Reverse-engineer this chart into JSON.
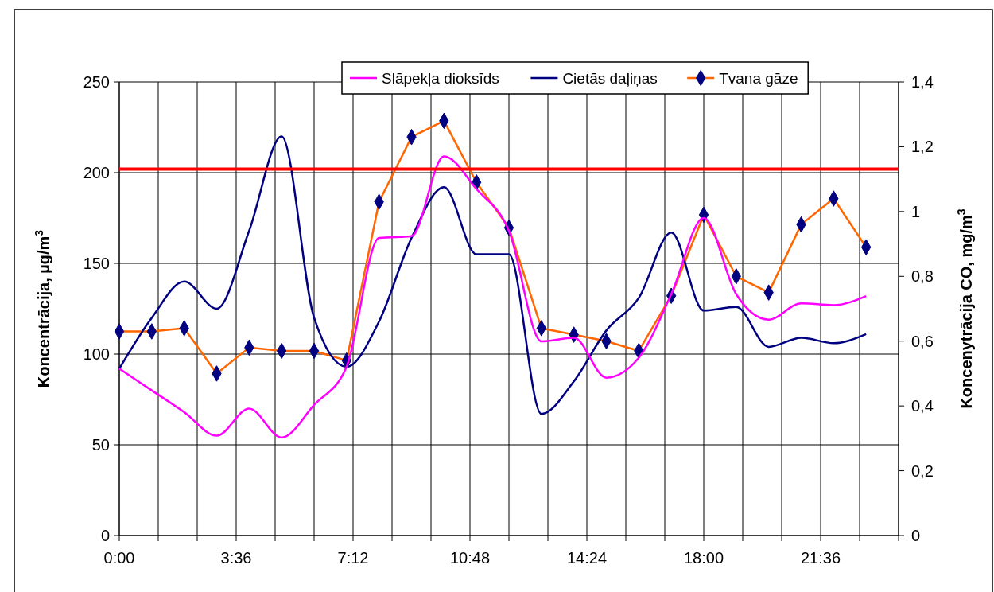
{
  "chart_data": {
    "type": "line",
    "xlabel": null,
    "ylabel": "Koncentrācija, µg/m$^{3}$",
    "y2label": "Koncenytrācija CO, mg/m$^{3}$",
    "x": [
      0,
      1,
      2,
      3,
      4,
      5,
      6,
      7,
      8,
      9,
      10,
      11,
      12,
      13,
      14,
      15,
      16,
      17,
      18,
      19,
      20,
      21,
      22,
      23
    ],
    "xlim": [
      0,
      24
    ],
    "xticks": [
      {
        "value": 0,
        "label": "0:00"
      },
      {
        "value": 1.2,
        "label": null
      },
      {
        "value": 2.4,
        "label": null
      },
      {
        "value": 3.6,
        "label": "3:36"
      },
      {
        "value": 4.8,
        "label": null
      },
      {
        "value": 6,
        "label": null
      },
      {
        "value": 7.2,
        "label": "7:12"
      },
      {
        "value": 8.4,
        "label": null
      },
      {
        "value": 9.6,
        "label": null
      },
      {
        "value": 10.8,
        "label": "10:48"
      },
      {
        "value": 12,
        "label": null
      },
      {
        "value": 13.2,
        "label": null
      },
      {
        "value": 14.4,
        "label": "14:24"
      },
      {
        "value": 15.6,
        "label": null
      },
      {
        "value": 16.8,
        "label": null
      },
      {
        "value": 18,
        "label": "18:00"
      },
      {
        "value": 19.2,
        "label": null
      },
      {
        "value": 20.4,
        "label": null
      },
      {
        "value": 21.6,
        "label": "21:36"
      },
      {
        "value": 22.8,
        "label": null
      },
      {
        "value": 24,
        "label": null
      }
    ],
    "ylim": [
      0,
      250
    ],
    "yticks": [
      0,
      50,
      100,
      150,
      200,
      250
    ],
    "y2lim": [
      0,
      1.4
    ],
    "y2ticks": [
      0,
      {
        "value": 0.2,
        "label": "0,2"
      },
      {
        "value": 0.4,
        "label": "0,4"
      },
      {
        "value": 0.6,
        "label": "0,6"
      },
      {
        "value": 0.8,
        "label": "0,8"
      },
      1,
      {
        "value": 1.2,
        "label": "1,2"
      },
      {
        "value": 1.4,
        "label": "1,4"
      }
    ],
    "grid": true,
    "legend": "top right",
    "line_style": "solid",
    "ref_lines": [
      {
        "axis": "y",
        "value": 202,
        "color": "#ff0000"
      }
    ],
    "series": [
      {
        "name": "Slāpekļa dioksīds",
        "color": "#ff00ff",
        "marker": "none",
        "values": [
          92,
          80,
          68,
          55,
          70,
          54,
          72,
          93,
          164,
          165,
          209,
          191,
          168,
          107,
          109,
          87,
          98,
          133,
          175,
          133,
          119,
          128,
          127,
          132
        ]
      },
      {
        "name": "Cietās daļiņas",
        "color": "#000080",
        "marker": "none",
        "values": [
          92,
          120,
          140,
          125,
          168,
          220,
          120,
          93,
          118,
          164,
          192,
          155,
          155,
          67,
          85,
          113,
          131,
          167,
          124,
          126,
          104,
          109,
          106,
          111
        ]
      },
      {
        "name": "Tvana gāze",
        "color": "#ff6600",
        "marker": "diamond",
        "axis": "y2",
        "values": [
          0.63,
          0.63,
          0.64,
          0.5,
          0.58,
          0.57,
          0.57,
          0.54,
          1.03,
          1.23,
          1.28,
          1.09,
          0.95,
          0.64,
          0.62,
          0.6,
          0.57,
          0.74,
          0.99,
          0.8,
          0.75,
          0.96,
          1.04,
          0.89
        ]
      }
    ]
  }
}
